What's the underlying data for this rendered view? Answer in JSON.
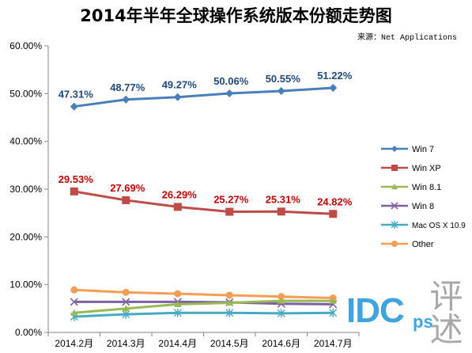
{
  "title": "2014年半年全球操作系统版本份额走势图",
  "source": "来源：Net Applications",
  "watermark": {
    "brand": "IDC",
    "suffix": "ps",
    "glyphs": "评述"
  },
  "colors": {
    "win7": "#4a7ebb",
    "winxp": "#be4b48",
    "win81": "#98b954",
    "win8": "#7d60a0",
    "macos": "#46aac4",
    "other": "#f59d56",
    "label_blue": "#1f497d",
    "label_red": "#c00000",
    "watermark": "#3fa3df"
  },
  "chart_data": {
    "type": "line",
    "title": "2014年半年全球操作系统版本份额走势图",
    "categories": [
      "2014.2月",
      "2014.3月",
      "2014.4月",
      "2014.5月",
      "2014.6月",
      "2014.7月"
    ],
    "ylim": [
      0,
      60
    ],
    "yticks": [
      "0.00%",
      "10.00%",
      "20.00%",
      "30.00%",
      "40.00%",
      "50.00%",
      "60.00%"
    ],
    "grid": false,
    "legend": "right",
    "series": [
      {
        "name": "Win 7",
        "marker": "diamond",
        "color_key": "win7",
        "values": [
          47.31,
          48.77,
          49.27,
          50.06,
          50.55,
          51.22
        ],
        "labels": [
          "47.31%",
          "48.77%",
          "49.27%",
          "50.06%",
          "50.55%",
          "51.22%"
        ]
      },
      {
        "name": "Win XP",
        "marker": "square",
        "color_key": "winxp",
        "values": [
          29.53,
          27.69,
          26.29,
          25.27,
          25.31,
          24.82
        ],
        "labels": [
          "29.53%",
          "27.69%",
          "26.29%",
          "25.27%",
          "25.31%",
          "24.82%"
        ]
      },
      {
        "name": "Win 8.1",
        "marker": "triangle",
        "color_key": "win81",
        "values": [
          4.1,
          5.0,
          5.9,
          6.2,
          6.6,
          6.6
        ],
        "labels": []
      },
      {
        "name": "Win 8",
        "marker": "x",
        "color_key": "win8",
        "values": [
          6.4,
          6.4,
          6.4,
          6.3,
          6.0,
          5.9
        ],
        "labels": []
      },
      {
        "name": "Mac OS X 10.9",
        "marker": "asterisk",
        "color_key": "macos",
        "values": [
          3.3,
          3.8,
          4.1,
          4.1,
          4.0,
          4.1
        ],
        "labels": []
      },
      {
        "name": "Other",
        "marker": "circle",
        "color_key": "other",
        "values": [
          8.9,
          8.4,
          8.1,
          7.8,
          7.5,
          7.2
        ],
        "labels": []
      }
    ]
  }
}
